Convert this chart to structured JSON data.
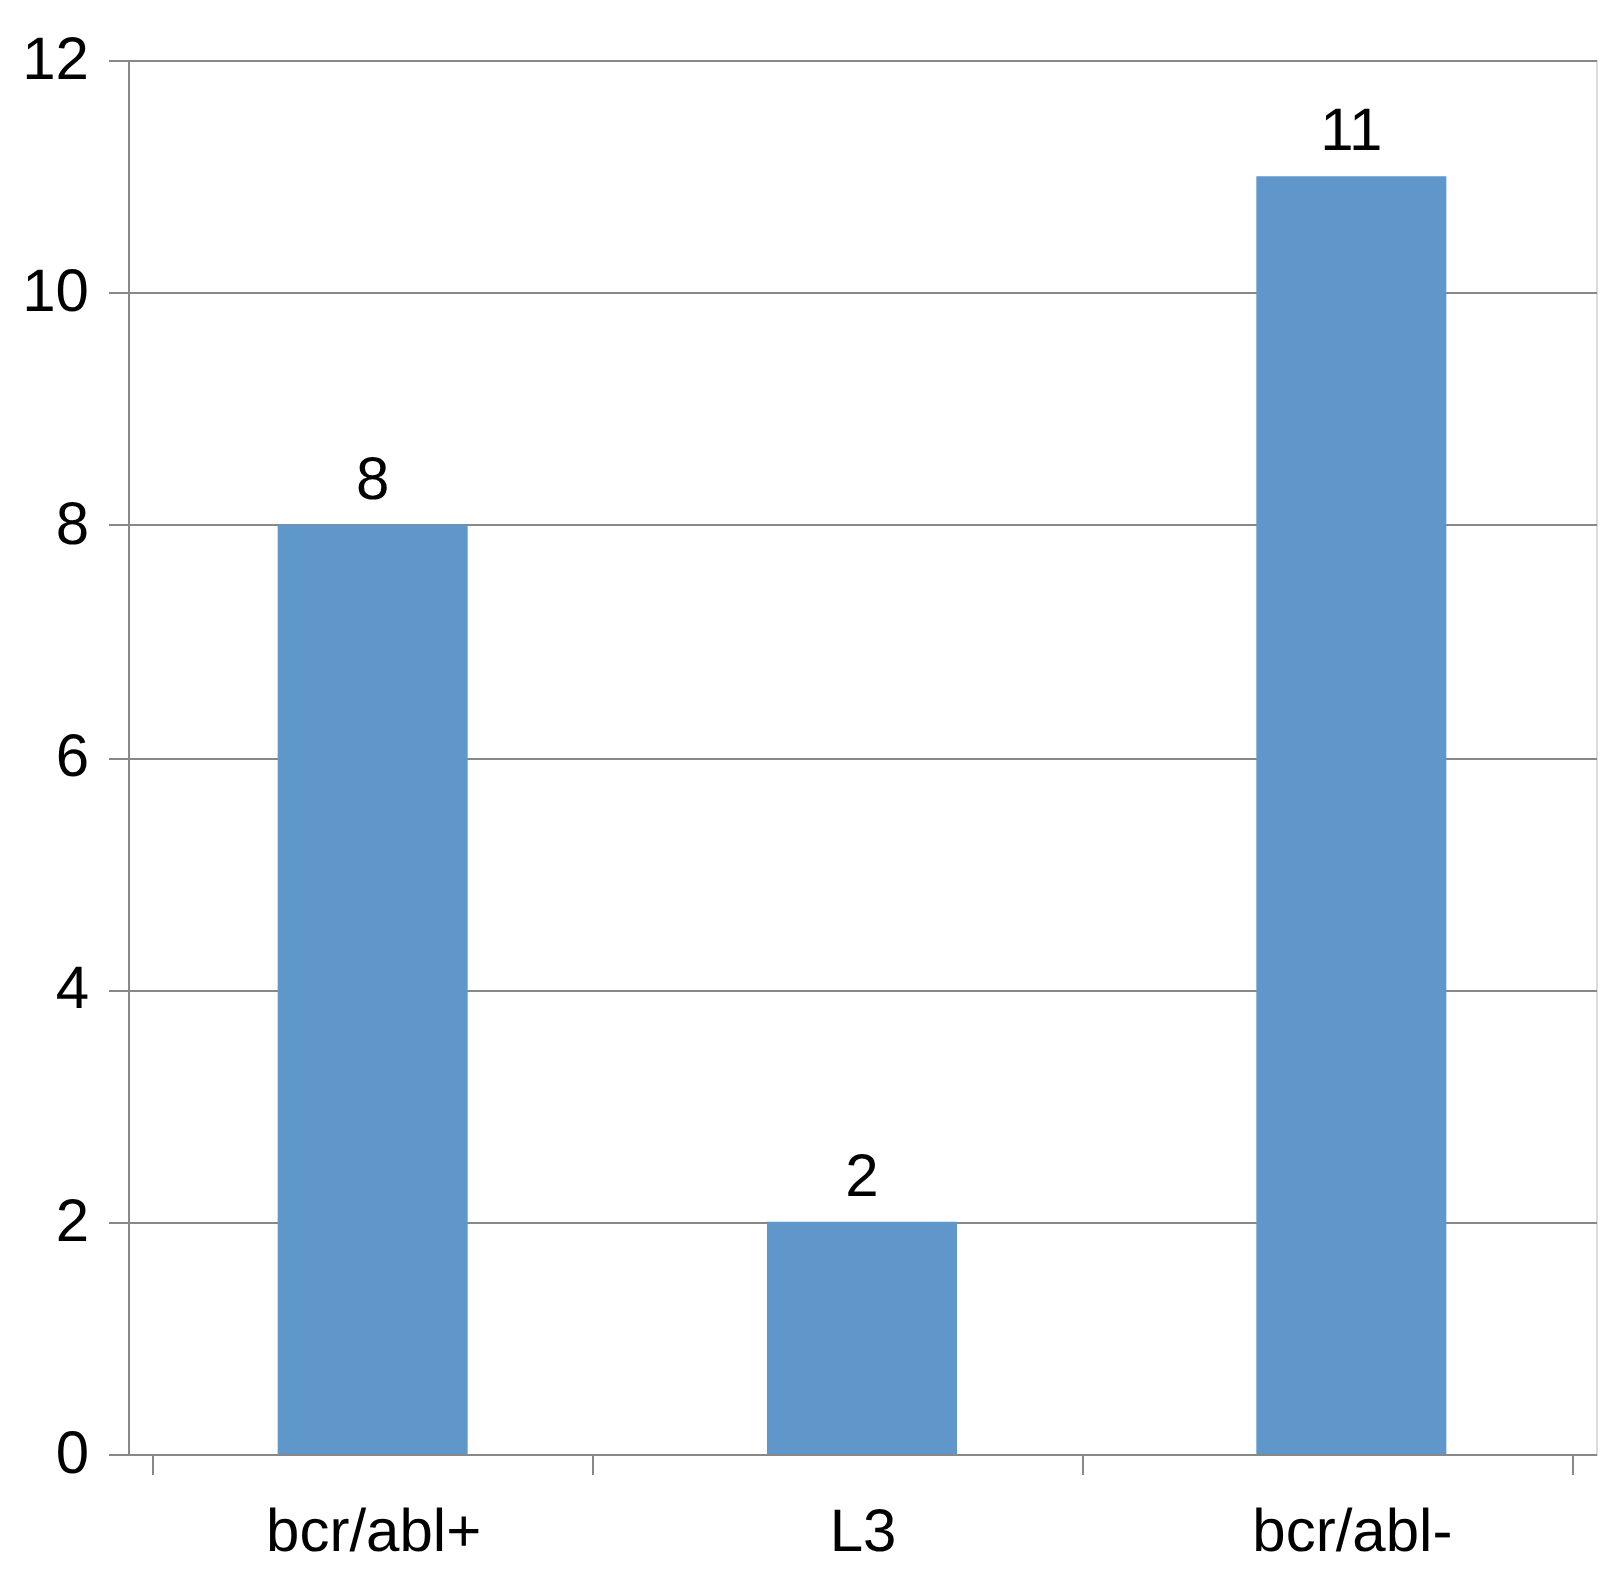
{
  "chart_data": {
    "type": "bar",
    "categories": [
      "bcr/abl+",
      "L3",
      "bcr/abl-"
    ],
    "values": [
      8,
      2,
      11
    ],
    "color": "#6097cb",
    "ylim": [
      0,
      12
    ],
    "yticks": [
      0,
      2,
      4,
      6,
      8,
      10,
      12
    ],
    "grid": "y",
    "data_labels": true
  }
}
